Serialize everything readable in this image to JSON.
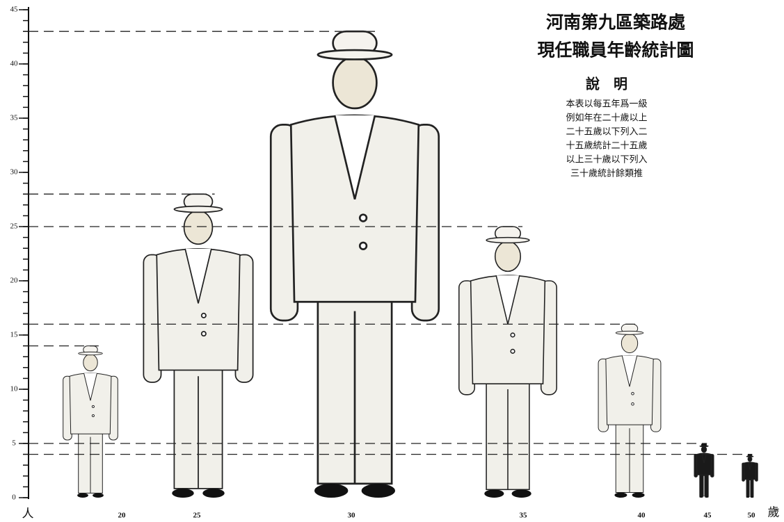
{
  "chart_data": {
    "type": "pictograph",
    "title": "河南第九區築路處",
    "subtitle": "現任職員年齡統計圖",
    "legend_title": "說　明",
    "notes": [
      "本表以每五年爲一級",
      "例如年在二十歲以上",
      "二十五歲以下列入二",
      "十五歲統計二十五歲",
      "以上三十歲以下列入",
      "三十歲統計餘類推"
    ],
    "y_label": "人",
    "x_label": "歲",
    "categories": [
      "20",
      "25",
      "30",
      "35",
      "40",
      "45",
      "50"
    ],
    "values": [
      14,
      28,
      43,
      25,
      16,
      5,
      4
    ],
    "colors": [
      "#f1f0ea",
      "#f1f0ea",
      "#f1f0ea",
      "#f1f0ea",
      "#f1f0ea",
      "#1a1a1a",
      "#1a1a1a"
    ],
    "ylim": [
      0,
      45
    ],
    "yticks": [
      0,
      5,
      10,
      15,
      20,
      25,
      30,
      35,
      40,
      45
    ],
    "grid": true
  }
}
